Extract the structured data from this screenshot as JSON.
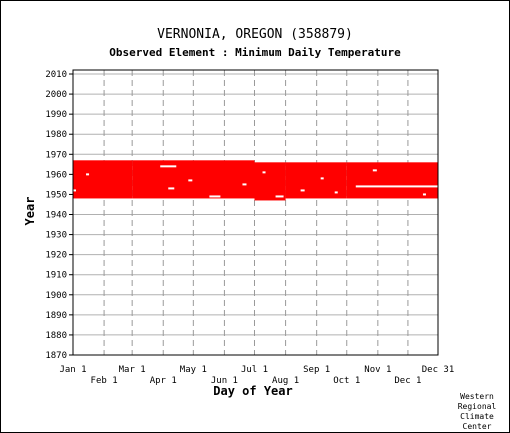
{
  "chart_data": {
    "type": "heatmap",
    "title": "VERNONIA, OREGON   (358879)",
    "subtitle": "Observed Element : Minimum Daily Temperature",
    "xlabel": "Day of Year",
    "ylabel": "Year",
    "x_range": [
      1,
      365
    ],
    "ylim": [
      1870,
      2012
    ],
    "y_ticks": [
      1870,
      1880,
      1890,
      1900,
      1910,
      1920,
      1930,
      1940,
      1950,
      1960,
      1970,
      1980,
      1990,
      2000,
      2010
    ],
    "x_ticks_top_row": [
      {
        "label": "Jan 1",
        "day": 1
      },
      {
        "label": "Mar 1",
        "day": 60
      },
      {
        "label": "May 1",
        "day": 121
      },
      {
        "label": "Jul 1",
        "day": 182
      },
      {
        "label": "Sep 1",
        "day": 244
      },
      {
        "label": "Nov 1",
        "day": 305
      },
      {
        "label": "Dec 31",
        "day": 365
      }
    ],
    "x_ticks_bottom_row": [
      {
        "label": "Feb 1",
        "day": 32
      },
      {
        "label": "Apr 1",
        "day": 91
      },
      {
        "label": "Jun 1",
        "day": 152
      },
      {
        "label": "Aug 1",
        "day": 213
      },
      {
        "label": "Oct 1",
        "day": 274
      },
      {
        "label": "Dec 1",
        "day": 335
      }
    ],
    "grid": true,
    "series": [
      {
        "color": "#ff0000",
        "coverage": [
          {
            "day_start": 1,
            "day_end": 60,
            "year_start": 1948,
            "year_end": 1967
          },
          {
            "day_start": 60,
            "day_end": 182,
            "year_start": 1948,
            "year_end": 1967
          },
          {
            "day_start": 182,
            "day_end": 213,
            "year_start": 1947,
            "year_end": 1966
          },
          {
            "day_start": 213,
            "day_end": 274,
            "year_start": 1948,
            "year_end": 1966
          },
          {
            "day_start": 274,
            "day_end": 365,
            "year_start": 1948,
            "year_end": 1966
          }
        ],
        "missing": [
          {
            "day_start": 88,
            "day_end": 104,
            "year": 1964
          },
          {
            "day_start": 137,
            "day_end": 148,
            "year": 1949
          },
          {
            "day_start": 283,
            "day_end": 365,
            "year": 1954
          },
          {
            "day_start": 203,
            "day_end": 211,
            "year": 1949
          },
          {
            "day_start": 96,
            "day_end": 102,
            "year": 1953
          },
          {
            "day_start": 14,
            "day_end": 17,
            "year": 1960
          },
          {
            "day_start": 1,
            "day_end": 4,
            "year": 1952
          },
          {
            "day_start": 116,
            "day_end": 120,
            "year": 1957
          },
          {
            "day_start": 190,
            "day_end": 193,
            "year": 1961
          },
          {
            "day_start": 228,
            "day_end": 232,
            "year": 1952
          },
          {
            "day_start": 248,
            "day_end": 251,
            "year": 1958
          },
          {
            "day_start": 262,
            "day_end": 265,
            "year": 1951
          },
          {
            "day_start": 300,
            "day_end": 304,
            "year": 1962
          },
          {
            "day_start": 350,
            "day_end": 353,
            "year": 1950
          },
          {
            "day_start": 170,
            "day_end": 174,
            "year": 1955
          }
        ]
      }
    ]
  },
  "footer": {
    "credit_lines": [
      "Western",
      "Regional",
      "Climate",
      "Center"
    ]
  }
}
